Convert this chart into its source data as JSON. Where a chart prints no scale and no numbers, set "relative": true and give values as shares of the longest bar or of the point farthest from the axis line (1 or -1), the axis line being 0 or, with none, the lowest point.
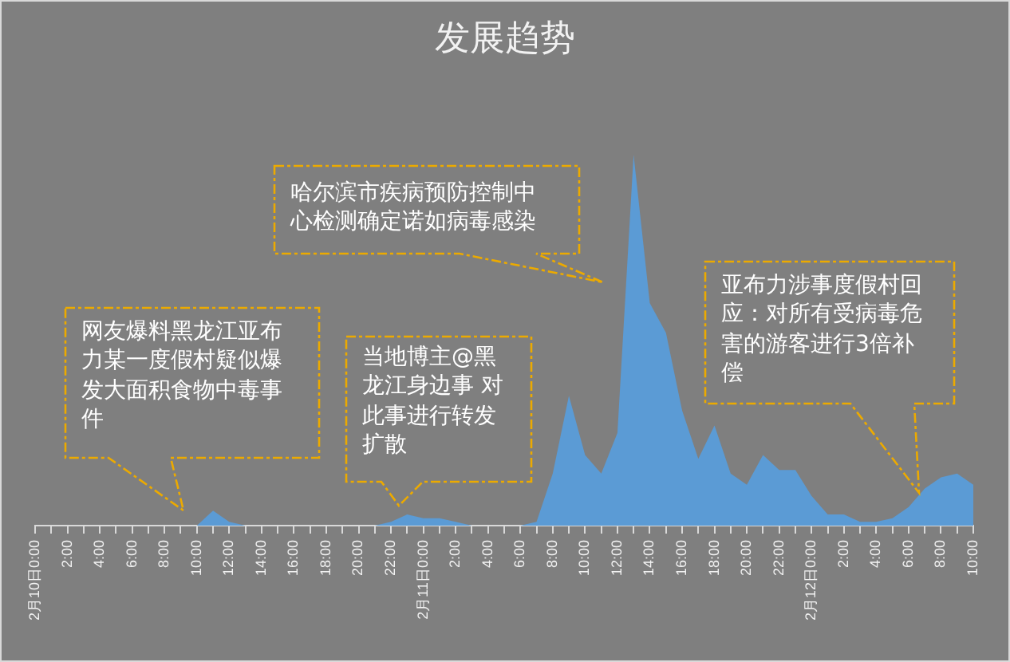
{
  "chart_data": {
    "type": "area",
    "title": "发展趋势",
    "relative": true,
    "color": "#5b9bd5",
    "categories": [
      "2月10日0:00",
      null,
      "2:00",
      null,
      "4:00",
      null,
      "6:00",
      null,
      "8:00",
      null,
      "10:00",
      null,
      "12:00",
      null,
      "14:00",
      null,
      "16:00",
      null,
      "18:00",
      null,
      "20:00",
      null,
      "22:00",
      null,
      "2月11日0:00",
      null,
      "2:00",
      null,
      "4:00",
      null,
      "6:00",
      null,
      "8:00",
      null,
      "10:00",
      null,
      "12:00",
      null,
      "14:00",
      null,
      "16:00",
      null,
      "18:00",
      null,
      "20:00",
      null,
      "22:00",
      null,
      "2月12日0:00",
      null,
      "2:00",
      null,
      "4:00",
      null,
      "6:00",
      null,
      "8:00",
      null,
      "10:00"
    ],
    "values": [
      0,
      0,
      0,
      0,
      0,
      0,
      0,
      0,
      0,
      0,
      0,
      0.04,
      0.01,
      0,
      0,
      0,
      0,
      0,
      0,
      0,
      0,
      0,
      0.01,
      0.03,
      0.02,
      0.02,
      0.01,
      0,
      0,
      0,
      0,
      0.01,
      0.14,
      0.35,
      0.19,
      0.14,
      0.25,
      1,
      0.6,
      0.52,
      0.31,
      0.18,
      0.27,
      0.14,
      0.11,
      0.19,
      0.15,
      0.15,
      0.08,
      0.03,
      0.03,
      0.01,
      0.01,
      0.02,
      0.05,
      0.1,
      0.13,
      0.14,
      0.11
    ],
    "annotations": [
      "网友爆料黑龙江亚布力某一度假村疑似爆发大面积食物中毒事件",
      "当地博主@黑龙江身边事 对此事进行转发扩散",
      "哈尔滨市疾病预防控制中心检测确定诺如病毒感染",
      "亚布力涉事度假村回应：对所有受病毒危害的游客进行3倍补偿"
    ]
  }
}
